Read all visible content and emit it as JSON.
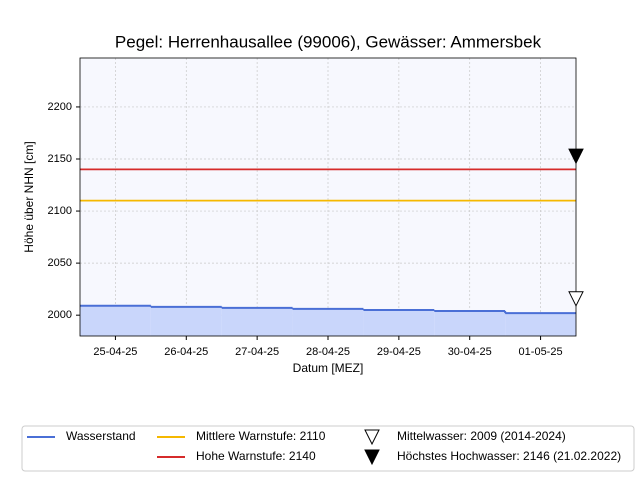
{
  "chart_data": {
    "type": "line",
    "title": "Pegel:  Herrenhausallee (99006), Gewässer:  Ammersbek",
    "x_label": "Datum [MEZ]",
    "y_label": "Höhe über NHN [cm]",
    "categories": [
      "25-04-25",
      "26-04-25",
      "27-04-25",
      "28-04-25",
      "29-04-25",
      "30-04-25",
      "01-05-25"
    ],
    "series": [
      {
        "name": "Wasserstand",
        "color": "#4a6fd6",
        "fill": "#c9d6fb",
        "values": [
          2009,
          2008,
          2007,
          2006,
          2005,
          2004,
          2002
        ]
      }
    ],
    "reference_lines": [
      {
        "name": "Mittlere Warnstufe: 2110",
        "value": 2110,
        "color": "#f5b800"
      },
      {
        "name": "Hohe Warnstufe: 2140",
        "value": 2140,
        "color": "#d62b2b"
      }
    ],
    "markers": [
      {
        "name": "Mittelwasser: 2009 (2014-2024)",
        "value": 2009,
        "filled": false
      },
      {
        "name": "Höchstes Hochwasser: 2146 (21.02.2022)",
        "value": 2146,
        "filled": true
      }
    ],
    "ylim": [
      1980,
      2247
    ],
    "yticks": [
      2000,
      2050,
      2100,
      2150,
      2200
    ],
    "grid": true
  }
}
